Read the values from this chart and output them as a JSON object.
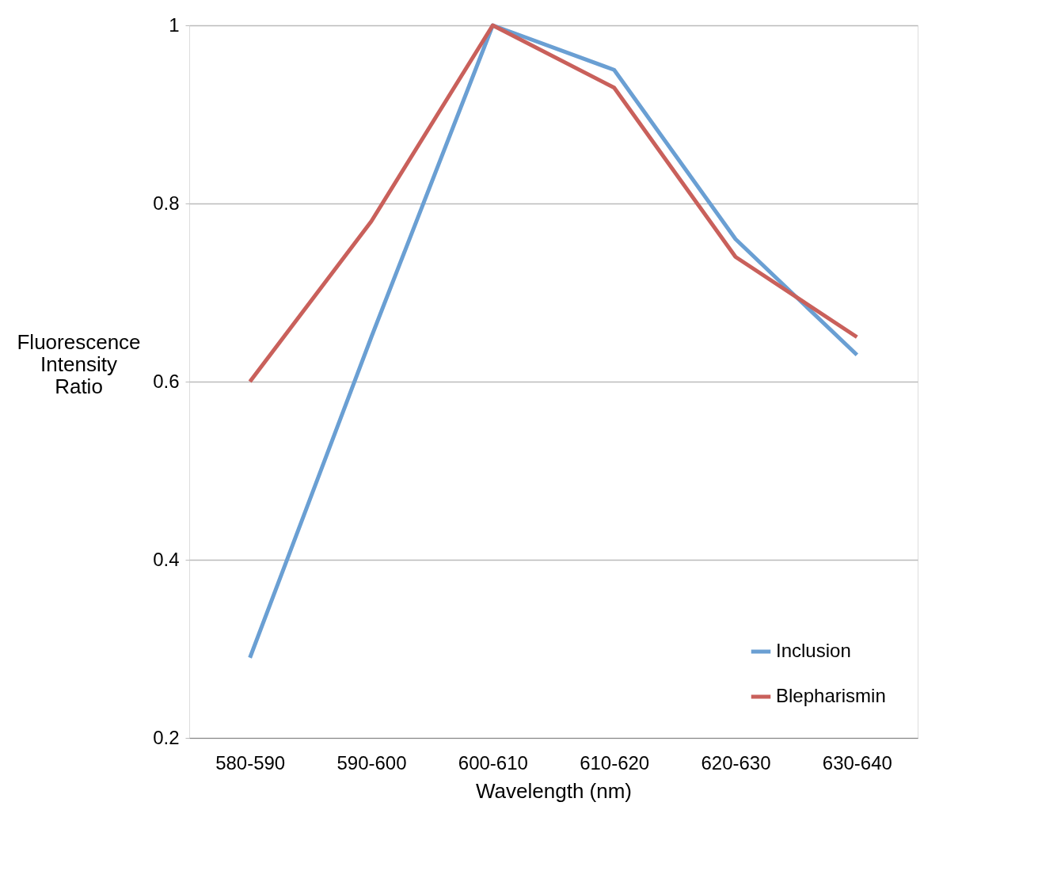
{
  "chart_data": {
    "type": "line",
    "xlabel": "Wavelength (nm)",
    "ylabel": "Fluorescence Intensity Ratio",
    "categories": [
      "580-590",
      "590-600",
      "600-610",
      "610-620",
      "620-630",
      "630-640"
    ],
    "series": [
      {
        "name": "Inclusion",
        "color": "#6a9fd3",
        "values": [
          0.29,
          0.65,
          1.0,
          0.95,
          0.76,
          0.63
        ]
      },
      {
        "name": "Blepharismin",
        "color": "#c9605b",
        "values": [
          0.6,
          0.78,
          1.0,
          0.93,
          0.74,
          0.65
        ]
      }
    ],
    "ylim": [
      0.2,
      1
    ],
    "yticks": [
      0.2,
      0.4,
      0.6,
      0.8,
      1
    ],
    "grid": "y",
    "legend": "bottom right",
    "marker": "none",
    "line_style": "solid"
  }
}
